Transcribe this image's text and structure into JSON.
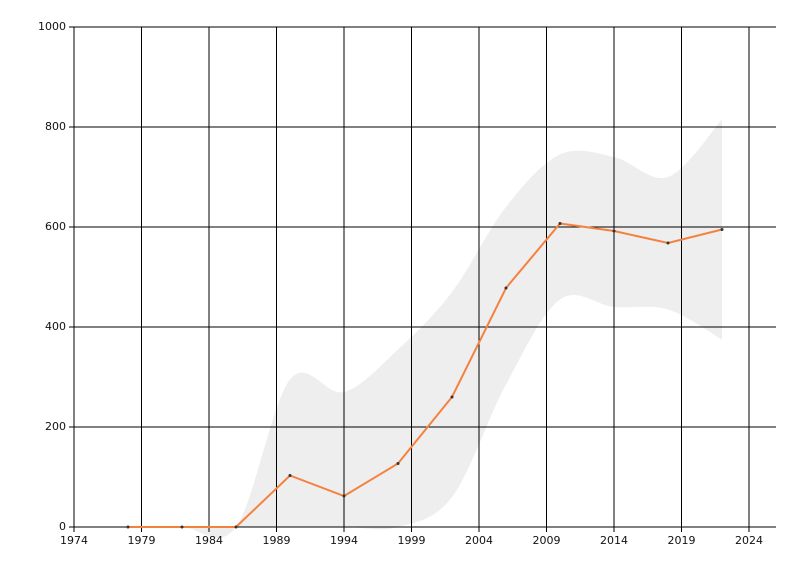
{
  "chart_data": {
    "type": "line",
    "x": [
      1978,
      1982,
      1986,
      1990,
      1994,
      1998,
      2002,
      2006,
      2010,
      2014,
      2018,
      2022
    ],
    "series": [
      {
        "color": "#f5813f",
        "marker_color": "#333333",
        "values": [
          0,
          0,
          0,
          103,
          62,
          127,
          260,
          478,
          607,
          592,
          568,
          595
        ]
      }
    ],
    "band": {
      "color": "#eeeeee",
      "upper": [
        0,
        0,
        0,
        295,
        270,
        355,
        470,
        640,
        745,
        740,
        700,
        815
      ],
      "lower": [
        0,
        0,
        0,
        0,
        0,
        0,
        60,
        285,
        455,
        440,
        435,
        375
      ]
    },
    "xlim": [
      1974,
      2026
    ],
    "xticks": [
      1974,
      1979,
      1984,
      1989,
      1994,
      1999,
      2004,
      2009,
      2014,
      2019,
      2024
    ],
    "ylim": [
      0,
      1000
    ],
    "yticks": [
      0,
      200,
      400,
      600,
      800,
      1000
    ],
    "grid": true
  }
}
